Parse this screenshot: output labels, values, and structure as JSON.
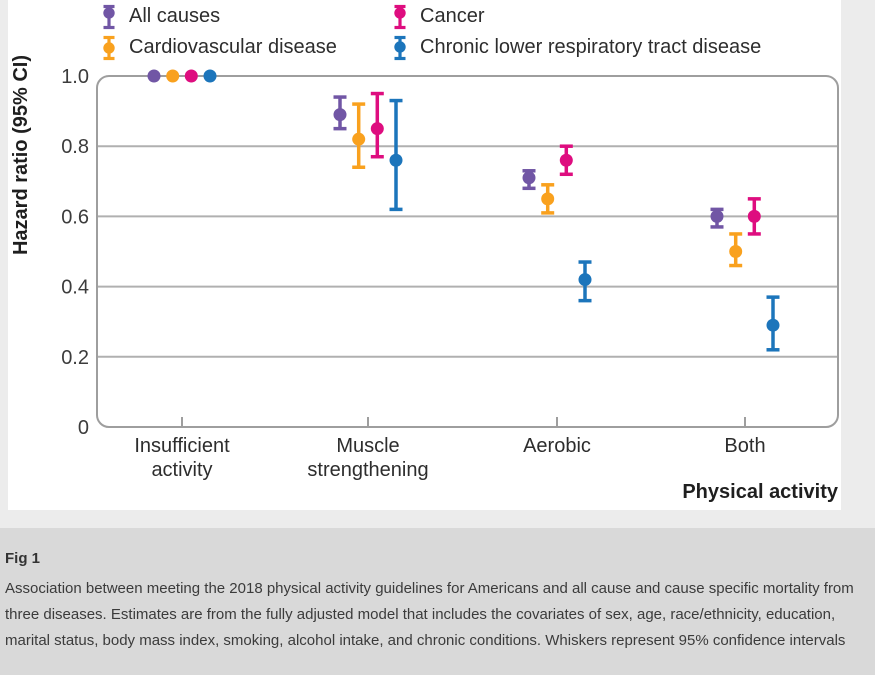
{
  "figure": {
    "fig_label": "Fig 1",
    "caption": "Association between meeting the 2018 physical activity guidelines for Americans and all cause and cause specific mortality from three diseases. Estimates are from the fully adjusted model that includes the covariates of sex, age, race/ethnicity, education, marital status, body mass index, smoking, alcohol intake, and chronic conditions. Whiskers represent 95% confidence intervals"
  },
  "colors": {
    "page_bg": "#ececec",
    "figure_bg": "#ffffff",
    "caption_bg": "#d9d9d9",
    "grid": "#b0b0b0",
    "plot_border": "#9e9e9e",
    "tick_text": "#3c3c3c",
    "label_text": "#2d2d2d"
  },
  "chart_data": {
    "type": "scatter",
    "title": "",
    "xlabel": "Physical activity",
    "ylabel": "Hazard ratio (95% CI)",
    "ylim": [
      0,
      1.0
    ],
    "yticks": [
      0,
      0.2,
      0.4,
      0.6,
      0.8,
      1.0
    ],
    "ytick_labels": [
      "0",
      "0.2",
      "0.4",
      "0.6",
      "0.8",
      "1.0"
    ],
    "grid": true,
    "legend_position": "top",
    "categories": [
      {
        "label": "Insufficient activity",
        "lines": [
          "Insufficient",
          "activity"
        ]
      },
      {
        "label": "Muscle strengthening",
        "lines": [
          "Muscle",
          "strengthening"
        ]
      },
      {
        "label": "Aerobic",
        "lines": [
          "Aerobic"
        ]
      },
      {
        "label": "Both",
        "lines": [
          "Both"
        ]
      }
    ],
    "series": [
      {
        "name": "All causes",
        "color": "#7156a5",
        "points": [
          {
            "hr": 1.0,
            "ci": null
          },
          {
            "hr": 0.89,
            "ci": [
              0.85,
              0.94
            ]
          },
          {
            "hr": 0.71,
            "ci": [
              0.68,
              0.73
            ]
          },
          {
            "hr": 0.6,
            "ci": [
              0.57,
              0.62
            ]
          }
        ]
      },
      {
        "name": "Cardiovascular disease",
        "color": "#f9a11e",
        "points": [
          {
            "hr": 1.0,
            "ci": null
          },
          {
            "hr": 0.82,
            "ci": [
              0.74,
              0.92
            ]
          },
          {
            "hr": 0.65,
            "ci": [
              0.61,
              0.69
            ]
          },
          {
            "hr": 0.5,
            "ci": [
              0.46,
              0.55
            ]
          }
        ]
      },
      {
        "name": "Cancer",
        "color": "#de0d7f",
        "points": [
          {
            "hr": 1.0,
            "ci": null
          },
          {
            "hr": 0.85,
            "ci": [
              0.77,
              0.95
            ]
          },
          {
            "hr": 0.76,
            "ci": [
              0.72,
              0.8
            ]
          },
          {
            "hr": 0.6,
            "ci": [
              0.55,
              0.65
            ]
          }
        ]
      },
      {
        "name": "Chronic lower respiratory tract disease",
        "color": "#1c75bb",
        "points": [
          {
            "hr": 1.0,
            "ci": null
          },
          {
            "hr": 0.76,
            "ci": [
              0.62,
              0.93
            ]
          },
          {
            "hr": 0.42,
            "ci": [
              0.36,
              0.47
            ]
          },
          {
            "hr": 0.29,
            "ci": [
              0.22,
              0.37
            ]
          }
        ]
      }
    ]
  }
}
